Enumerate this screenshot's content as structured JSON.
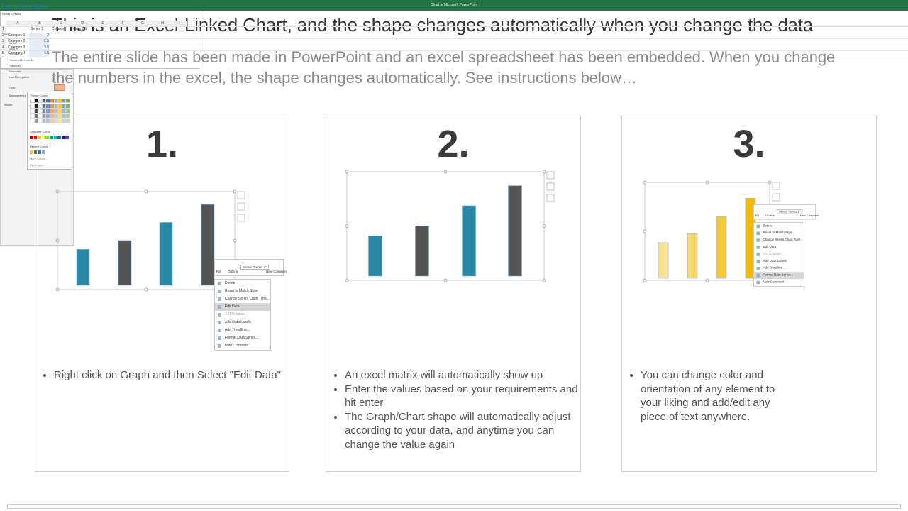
{
  "header": {
    "title": "This is an Excel-Linked Chart, and the shape changes automatically when you change the data",
    "subtitle": "The entire slide has been made in PowerPoint and an excel spreadsheet has been embedded. When you change the numbers in the excel, the shape changes automatically. See instructions below…"
  },
  "menu": {
    "toolbar": [
      "Fill",
      "Outline",
      "Series \"Series 1\"",
      "New Comment"
    ],
    "items": [
      "Delete",
      "Reset to Match Style",
      "Change Series Chart Type...",
      "Edit Data",
      "3-D Rotation...",
      "Add Data Labels",
      "Add Trendline...",
      "Format Data Series...",
      "New Comment"
    ]
  },
  "excel": {
    "window_title": "Chart in Microsoft PowerPoint",
    "columns": [
      "A",
      "B",
      "C",
      "D",
      "E",
      "F",
      "G",
      "H",
      "I"
    ],
    "row_numbers": [
      1,
      2,
      3,
      4,
      5
    ],
    "headers": [
      "Series 1",
      "Column1",
      "Column2"
    ],
    "rows": [
      {
        "label": "Category 1",
        "value": 2
      },
      {
        "label": "Category 2",
        "value": 2.5
      },
      {
        "label": "Category 3",
        "value": 3.5
      },
      {
        "label": "Category 4",
        "value": 4.5
      }
    ]
  },
  "format_pane": {
    "title": "Format Data Series",
    "section": "Series Options",
    "fill": "Fill",
    "options": [
      "No fill",
      "Solid fill",
      "Gradient fill",
      "Picture or texture fill",
      "Pattern fill",
      "Automatic",
      "Invert if negative"
    ],
    "color": "Color",
    "transparency": "Transparency",
    "border": "Border",
    "theme_colors": "Theme Colors",
    "standard_colors": "Standard Colors",
    "recent_colors": "Recent Colors",
    "more_colors": "More Colors...",
    "eyedropper": "Eyedropper"
  },
  "panels": [
    {
      "number": "1.",
      "bullets": [
        "Right click on Graph and then Select \"Edit Data\""
      ]
    },
    {
      "number": "2.",
      "bullets": [
        "An excel matrix will automatically show up",
        "Enter the values based on your requirements and hit enter",
        "The Graph/Chart shape will automatically adjust according to your data, and anytime you can change the value again"
      ]
    },
    {
      "number": "3.",
      "bullets": [
        "You can change color and orientation of any element to your liking and add/edit any piece of text anywhere."
      ]
    }
  ]
}
